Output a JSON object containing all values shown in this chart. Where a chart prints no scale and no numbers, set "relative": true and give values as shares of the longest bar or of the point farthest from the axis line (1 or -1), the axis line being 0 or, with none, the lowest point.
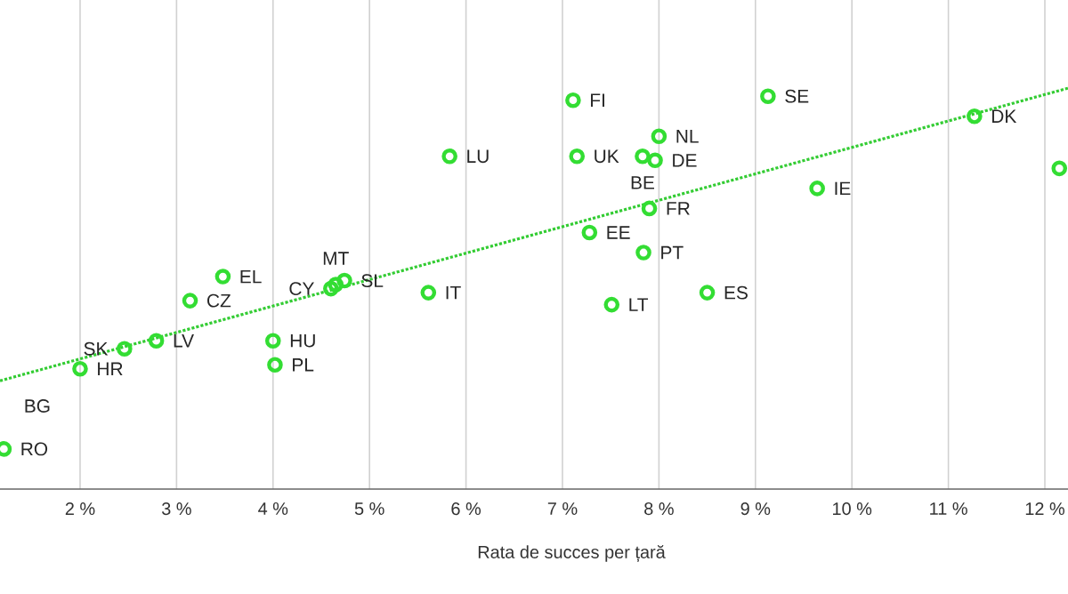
{
  "chart_data": {
    "type": "scatter",
    "xlabel": "Rata de succes per țară",
    "relative": true,
    "grid": true,
    "marker": "circle",
    "xlim": [
      1.17,
      12.24
    ],
    "xticks": [
      {
        "value": 2,
        "label": "2 %"
      },
      {
        "value": 3,
        "label": "3 %"
      },
      {
        "value": 4,
        "label": "4 %"
      },
      {
        "value": 5,
        "label": "5 %"
      },
      {
        "value": 6,
        "label": "6 %"
      },
      {
        "value": 7,
        "label": "7 %"
      },
      {
        "value": 8,
        "label": "8 %"
      },
      {
        "value": 9,
        "label": "9 %"
      },
      {
        "value": 10,
        "label": "10 %"
      },
      {
        "value": 11,
        "label": "11 %"
      },
      {
        "value": 12,
        "label": "12 %"
      }
    ],
    "series": [
      {
        "type": "scatter",
        "color": "#33dd33",
        "x": [
          1.21,
          2.0,
          2.46,
          2.79,
          3.14,
          3.48,
          4.0,
          4.02,
          4.6,
          4.65,
          4.74,
          5.61,
          5.83,
          7.11,
          7.15,
          7.83,
          7.96,
          8.0,
          7.9,
          7.28,
          7.84,
          7.51,
          8.5,
          9.13,
          9.64,
          11.27,
          12.15
        ],
        "values": [
          0.1,
          0.3,
          0.35,
          0.37,
          0.47,
          0.53,
          0.37,
          0.31,
          0.5,
          0.51,
          0.52,
          0.49,
          0.83,
          0.97,
          0.83,
          0.83,
          0.82,
          0.88,
          0.7,
          0.64,
          0.59,
          0.46,
          0.49,
          0.98,
          0.75,
          0.93,
          0.8
        ]
      },
      {
        "type": "line",
        "color": "#33cc33",
        "line_style": "dotted",
        "marker": "none",
        "x": [
          1.17,
          12.24
        ],
        "values": [
          0.27,
          1.0
        ]
      }
    ],
    "annotations": [
      {
        "text": "RO",
        "x": 1.21,
        "y": 0.1
      },
      {
        "text": "HR",
        "x": 2.0,
        "y": 0.3
      },
      {
        "text": "SK",
        "x": 2.46,
        "y": 0.35
      },
      {
        "text": "LV",
        "x": 2.79,
        "y": 0.37
      },
      {
        "text": "CZ",
        "x": 3.14,
        "y": 0.47
      },
      {
        "text": "EL",
        "x": 3.48,
        "y": 0.53
      },
      {
        "text": "HU",
        "x": 4.0,
        "y": 0.37
      },
      {
        "text": "PL",
        "x": 4.02,
        "y": 0.31
      },
      {
        "text": "CY",
        "x": 4.6,
        "y": 0.5
      },
      {
        "text": "MT",
        "x": 4.65,
        "y": 0.51
      },
      {
        "text": "SL",
        "x": 4.74,
        "y": 0.52
      },
      {
        "text": "IT",
        "x": 5.61,
        "y": 0.49
      },
      {
        "text": "LU",
        "x": 5.83,
        "y": 0.83
      },
      {
        "text": "FI",
        "x": 7.11,
        "y": 0.97
      },
      {
        "text": "UK",
        "x": 7.15,
        "y": 0.83
      },
      {
        "text": "BE",
        "x": 7.83,
        "y": 0.83
      },
      {
        "text": "DE",
        "x": 7.96,
        "y": 0.82
      },
      {
        "text": "NL",
        "x": 8.0,
        "y": 0.88
      },
      {
        "text": "FR",
        "x": 7.9,
        "y": 0.7
      },
      {
        "text": "EE",
        "x": 7.28,
        "y": 0.64
      },
      {
        "text": "PT",
        "x": 7.84,
        "y": 0.59
      },
      {
        "text": "LT",
        "x": 7.51,
        "y": 0.46
      },
      {
        "text": "ES",
        "x": 8.5,
        "y": 0.49
      },
      {
        "text": "SE",
        "x": 9.13,
        "y": 0.98
      },
      {
        "text": "IE",
        "x": 9.64,
        "y": 0.75
      },
      {
        "text": "DK",
        "x": 11.27,
        "y": 0.93
      },
      "BG"
    ]
  }
}
